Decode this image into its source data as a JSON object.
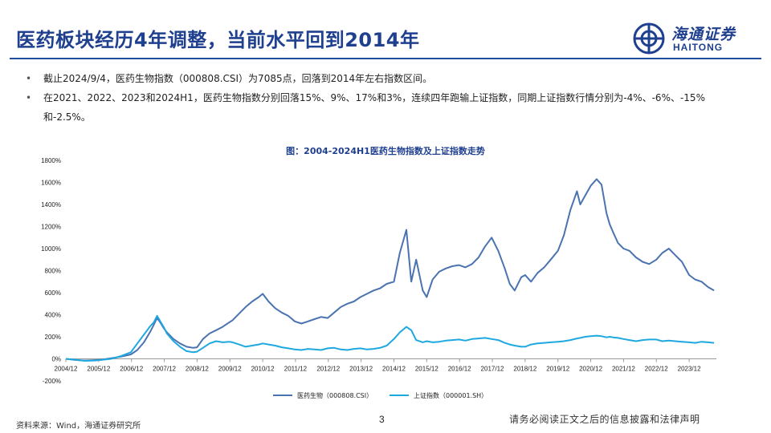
{
  "slide": {
    "title": "医药板块经历4年调整，当前水平回到2014年",
    "logo": {
      "cn": "海通证券",
      "en": "HAITONG"
    },
    "bullets": [
      "截止2024/9/4，医药生物指数（000808.CSI）为7085点，回落到2014年左右指数区间。",
      "在2021、2022、2023和2024H1，医药生物指数分别回落15%、9%、17%和3%，连续四年跑输上证指数，同期上证指数行情分别为-4%、-6%、-15%和-2.5%。"
    ],
    "source": "资料来源：Wind，海通证券研究所",
    "page": "3",
    "disclaimer": "请务必阅读正文之后的信息披露和法律声明"
  },
  "colors": {
    "title": "#1f3f8f",
    "series_pharma": "#4a73b0",
    "series_sh": "#1ea8e0",
    "axis": "#999999"
  },
  "chart_data": {
    "type": "line",
    "title": "图：2004-2024H1医药生物指数及上证指数走势",
    "xlabel": "",
    "ylabel": "",
    "ylim": [
      -200,
      1800
    ],
    "yticks": [
      "1800%",
      "1600%",
      "1400%",
      "1200%",
      "1000%",
      "800%",
      "600%",
      "400%",
      "200%",
      "0%",
      "-200%"
    ],
    "ytick_values": [
      1800,
      1600,
      1400,
      1200,
      1000,
      800,
      600,
      400,
      200,
      0,
      -200
    ],
    "xlim": [
      2004.92,
      2024.75
    ],
    "xticks": [
      "2004/12",
      "2005/12",
      "2006/12",
      "2007/12",
      "2008/12",
      "2009/12",
      "2010/12",
      "2011/12",
      "2012/12",
      "2013/12",
      "2014/12",
      "2015/12",
      "2016/12",
      "2017/12",
      "2018/12",
      "2019/12",
      "2020/12",
      "2021/12",
      "2022/12",
      "2023/12"
    ],
    "xtick_values": [
      2004.92,
      2005.92,
      2006.92,
      2007.92,
      2008.92,
      2009.92,
      2010.92,
      2011.92,
      2012.92,
      2013.92,
      2014.92,
      2015.92,
      2016.92,
      2017.92,
      2018.92,
      2019.92,
      2020.92,
      2021.92,
      2022.92,
      2023.92
    ],
    "legend_position": "bottom",
    "grid": false,
    "series": [
      {
        "name": "医药生物（000808.CSI）",
        "x": [
          2004.92,
          2005.2,
          2005.5,
          2005.8,
          2006.0,
          2006.3,
          2006.6,
          2006.9,
          2007.1,
          2007.3,
          2007.5,
          2007.6,
          2007.7,
          2007.8,
          2007.9,
          2008.0,
          2008.2,
          2008.4,
          2008.6,
          2008.8,
          2008.92,
          2009.1,
          2009.3,
          2009.5,
          2009.7,
          2009.9,
          2010.0,
          2010.2,
          2010.4,
          2010.6,
          2010.8,
          2010.92,
          2011.1,
          2011.3,
          2011.5,
          2011.7,
          2011.9,
          2012.1,
          2012.3,
          2012.5,
          2012.7,
          2012.9,
          2013.1,
          2013.3,
          2013.5,
          2013.7,
          2013.9,
          2014.1,
          2014.3,
          2014.5,
          2014.7,
          2014.92,
          2015.1,
          2015.3,
          2015.45,
          2015.6,
          2015.8,
          2015.92,
          2016.1,
          2016.3,
          2016.5,
          2016.7,
          2016.9,
          2017.1,
          2017.3,
          2017.5,
          2017.7,
          2017.9,
          2018.1,
          2018.3,
          2018.45,
          2018.6,
          2018.8,
          2018.92,
          2019.1,
          2019.3,
          2019.5,
          2019.7,
          2019.92,
          2020.1,
          2020.3,
          2020.5,
          2020.6,
          2020.75,
          2020.92,
          2021.1,
          2021.25,
          2021.4,
          2021.5,
          2021.6,
          2021.75,
          2021.92,
          2022.1,
          2022.3,
          2022.5,
          2022.7,
          2022.92,
          2023.1,
          2023.3,
          2023.5,
          2023.7,
          2023.92,
          2024.1,
          2024.3,
          2024.5,
          2024.68
        ],
        "values": [
          0,
          -10,
          -15,
          -12,
          -8,
          5,
          20,
          40,
          80,
          150,
          250,
          310,
          370,
          330,
          280,
          240,
          180,
          140,
          110,
          100,
          105,
          180,
          230,
          260,
          290,
          330,
          350,
          410,
          470,
          520,
          560,
          590,
          520,
          460,
          420,
          390,
          340,
          320,
          340,
          360,
          380,
          370,
          420,
          470,
          500,
          520,
          560,
          590,
          620,
          640,
          680,
          700,
          960,
          1170,
          700,
          900,
          620,
          560,
          720,
          790,
          820,
          840,
          850,
          830,
          860,
          920,
          1020,
          1100,
          980,
          820,
          680,
          620,
          740,
          760,
          700,
          780,
          830,
          900,
          980,
          1120,
          1350,
          1520,
          1400,
          1480,
          1570,
          1630,
          1580,
          1320,
          1220,
          1150,
          1050,
          1000,
          980,
          920,
          880,
          860,
          900,
          960,
          1000,
          940,
          880,
          760,
          720,
          700,
          650,
          620
        ]
      },
      {
        "name": "上证指数（000001.SH）",
        "x": [
          2004.92,
          2005.2,
          2005.5,
          2005.8,
          2006.0,
          2006.3,
          2006.6,
          2006.9,
          2007.1,
          2007.3,
          2007.5,
          2007.6,
          2007.7,
          2007.8,
          2007.9,
          2008.0,
          2008.2,
          2008.4,
          2008.6,
          2008.8,
          2008.92,
          2009.1,
          2009.3,
          2009.5,
          2009.7,
          2009.9,
          2010.0,
          2010.2,
          2010.4,
          2010.6,
          2010.8,
          2010.92,
          2011.1,
          2011.3,
          2011.5,
          2011.7,
          2011.9,
          2012.1,
          2012.3,
          2012.5,
          2012.7,
          2012.9,
          2013.1,
          2013.3,
          2013.5,
          2013.7,
          2013.9,
          2014.1,
          2014.3,
          2014.5,
          2014.7,
          2014.92,
          2015.1,
          2015.3,
          2015.45,
          2015.6,
          2015.8,
          2015.92,
          2016.1,
          2016.3,
          2016.5,
          2016.7,
          2016.9,
          2017.1,
          2017.3,
          2017.5,
          2017.7,
          2017.9,
          2018.1,
          2018.3,
          2018.45,
          2018.6,
          2018.8,
          2018.92,
          2019.1,
          2019.3,
          2019.5,
          2019.7,
          2019.92,
          2020.1,
          2020.3,
          2020.5,
          2020.6,
          2020.75,
          2020.92,
          2021.1,
          2021.25,
          2021.4,
          2021.5,
          2021.6,
          2021.75,
          2021.92,
          2022.1,
          2022.3,
          2022.5,
          2022.7,
          2022.92,
          2023.1,
          2023.3,
          2023.5,
          2023.7,
          2023.92,
          2024.1,
          2024.3,
          2024.5,
          2024.68
        ],
        "values": [
          0,
          -8,
          -18,
          -15,
          -10,
          0,
          25,
          60,
          140,
          220,
          300,
          330,
          390,
          340,
          290,
          230,
          160,
          110,
          70,
          60,
          65,
          100,
          140,
          160,
          150,
          155,
          150,
          130,
          110,
          120,
          130,
          140,
          130,
          120,
          105,
          95,
          85,
          80,
          90,
          85,
          80,
          95,
          100,
          85,
          80,
          90,
          95,
          85,
          90,
          100,
          120,
          180,
          240,
          290,
          260,
          170,
          150,
          160,
          150,
          155,
          165,
          170,
          175,
          165,
          180,
          185,
          190,
          180,
          170,
          145,
          130,
          120,
          110,
          110,
          130,
          140,
          145,
          150,
          155,
          160,
          170,
          185,
          190,
          200,
          205,
          210,
          205,
          195,
          200,
          195,
          190,
          180,
          170,
          160,
          170,
          175,
          175,
          160,
          165,
          160,
          155,
          150,
          145,
          155,
          150,
          145
        ]
      }
    ]
  }
}
